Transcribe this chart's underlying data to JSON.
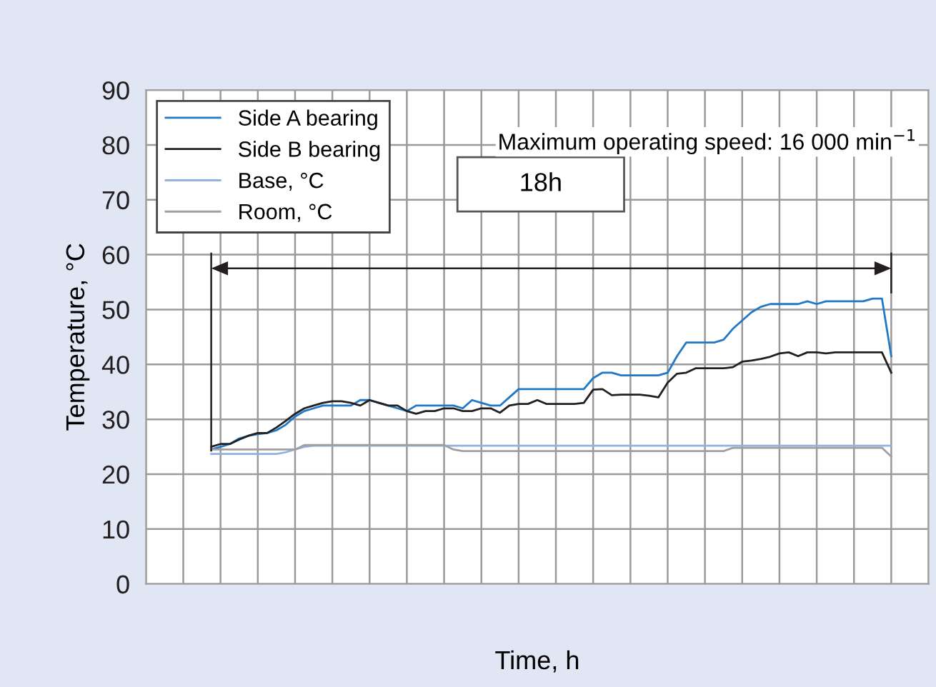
{
  "chart_data": {
    "type": "line",
    "xlabel": "Time, h",
    "ylabel": "Temperature, °C",
    "categories": [
      null,
      null,
      null,
      null,
      null,
      null,
      null,
      null,
      null,
      null,
      null,
      null,
      null,
      null,
      null,
      null,
      null,
      null,
      null,
      null,
      null,
      null,
      null,
      null,
      null,
      null,
      null,
      null,
      null,
      null,
      null,
      null,
      null,
      null,
      null,
      null,
      null,
      null,
      null,
      null,
      null,
      null,
      null,
      null,
      null,
      null,
      null,
      null,
      null,
      null,
      null,
      null,
      null,
      null,
      null,
      null,
      null,
      null,
      null,
      null,
      null,
      null,
      null,
      null,
      null,
      null,
      null,
      null,
      null,
      null,
      null,
      null,
      null,
      null,
      null,
      null,
      null,
      null,
      null,
      null,
      null,
      null,
      null,
      null,
      null
    ],
    "series": [
      {
        "name": "Side A bearing",
        "color": "#1f78c8",
        "values": [
          null,
          null,
          null,
          null,
          null,
          null,
          null,
          24.5,
          25,
          25.5,
          26.5,
          27,
          27.3,
          27.5,
          28,
          29,
          30.5,
          31.5,
          32,
          32.5,
          32.5,
          32.5,
          32.5,
          33.5,
          33.5,
          33,
          32.5,
          32,
          31.5,
          32.5,
          32.5,
          32.5,
          32.5,
          32.5,
          32,
          33.5,
          33,
          32.5,
          32.5,
          34,
          35.5,
          35.5,
          35.5,
          35.5,
          35.5,
          35.5,
          35.5,
          35.5,
          37.5,
          38.5,
          38.5,
          38,
          38,
          38,
          38,
          38,
          38.5,
          41.5,
          44,
          44,
          44,
          44,
          44.5,
          46.5,
          48,
          49.5,
          50.5,
          51,
          51,
          51,
          51,
          51.5,
          51,
          51.5,
          51.5,
          51.5,
          51.5,
          51.5,
          52,
          52,
          41.5,
          null,
          null,
          null,
          null
        ]
      },
      {
        "name": "Side B bearing",
        "color": "#231f20",
        "values": [
          null,
          null,
          null,
          null,
          null,
          null,
          null,
          25,
          25.5,
          25.5,
          26.3,
          27,
          27.5,
          27.5,
          28.5,
          29.7,
          31,
          32,
          32.5,
          33,
          33.3,
          33.3,
          33,
          32.5,
          33.5,
          33,
          32.5,
          32.5,
          31.5,
          31,
          31.5,
          31.5,
          32,
          32,
          31.5,
          31.5,
          32,
          32,
          31.2,
          32.5,
          32.8,
          32.8,
          33.5,
          32.8,
          32.8,
          32.8,
          32.8,
          33,
          35.4,
          35.5,
          34.4,
          34.5,
          34.5,
          34.5,
          34.3,
          34,
          36.7,
          38.3,
          38.5,
          39.3,
          39.3,
          39.3,
          39.3,
          39.5,
          40.5,
          40.7,
          41,
          41.4,
          42,
          42.2,
          41.5,
          42.2,
          42.2,
          42,
          42.2,
          42.2,
          42.2,
          42.2,
          42.2,
          42.2,
          38.5,
          null,
          null,
          null,
          null
        ]
      },
      {
        "name": "Base, °C",
        "color": "#8fb3e0",
        "values": [
          null,
          null,
          null,
          null,
          null,
          null,
          null,
          23.7,
          23.7,
          23.7,
          23.7,
          23.7,
          23.7,
          23.7,
          23.7,
          24,
          24.5,
          25,
          25.2,
          25.2,
          25.2,
          25.2,
          25.2,
          25.2,
          25.2,
          25.2,
          25.2,
          25.2,
          25.2,
          25.2,
          25.2,
          25.2,
          25.2,
          25.2,
          25.2,
          25.2,
          25.2,
          25.2,
          25.2,
          25.2,
          25.2,
          25.2,
          25.2,
          25.2,
          25.2,
          25.2,
          25.2,
          25.2,
          25.2,
          25.2,
          25.2,
          25.2,
          25.2,
          25.2,
          25.2,
          25.2,
          25.2,
          25.2,
          25.2,
          25.2,
          25.2,
          25.2,
          25.2,
          25.2,
          25.2,
          25.2,
          25.2,
          25.2,
          25.2,
          25.2,
          25.2,
          25.2,
          25.2,
          25.2,
          25.2,
          25.2,
          25.2,
          25.2,
          25.2,
          25.2,
          25.2,
          null,
          null,
          null,
          null
        ]
      },
      {
        "name": "Room, °C",
        "color": "#a0a0a0",
        "values": [
          null,
          null,
          null,
          null,
          null,
          null,
          null,
          24.5,
          24.5,
          24.5,
          24.5,
          24.5,
          24.5,
          24.5,
          24.5,
          24.5,
          24.5,
          25.3,
          25.3,
          25.3,
          25.3,
          25.3,
          25.3,
          25.3,
          25.3,
          25.3,
          25.3,
          25.3,
          25.3,
          25.3,
          25.3,
          25.3,
          25.3,
          24.5,
          24.2,
          24.2,
          24.2,
          24.2,
          24.2,
          24.2,
          24.2,
          24.2,
          24.2,
          24.2,
          24.2,
          24.2,
          24.2,
          24.2,
          24.2,
          24.2,
          24.2,
          24.2,
          24.2,
          24.2,
          24.2,
          24.2,
          24.2,
          24.2,
          24.2,
          24.2,
          24.2,
          24.2,
          24.2,
          24.8,
          24.8,
          24.8,
          24.8,
          24.8,
          24.8,
          24.8,
          24.8,
          24.8,
          24.8,
          24.8,
          24.8,
          24.8,
          24.8,
          24.8,
          24.8,
          24.8,
          23.2,
          null,
          null,
          null,
          null
        ]
      }
    ],
    "ylim": [
      0,
      90
    ],
    "yticks": [
      0,
      10,
      20,
      30,
      40,
      50,
      60,
      70,
      80,
      90
    ],
    "grid": true,
    "legend": "top left",
    "annotations": [
      "Maximum operating speed: 16 000 min$^{−1}$",
      "18h"
    ]
  }
}
